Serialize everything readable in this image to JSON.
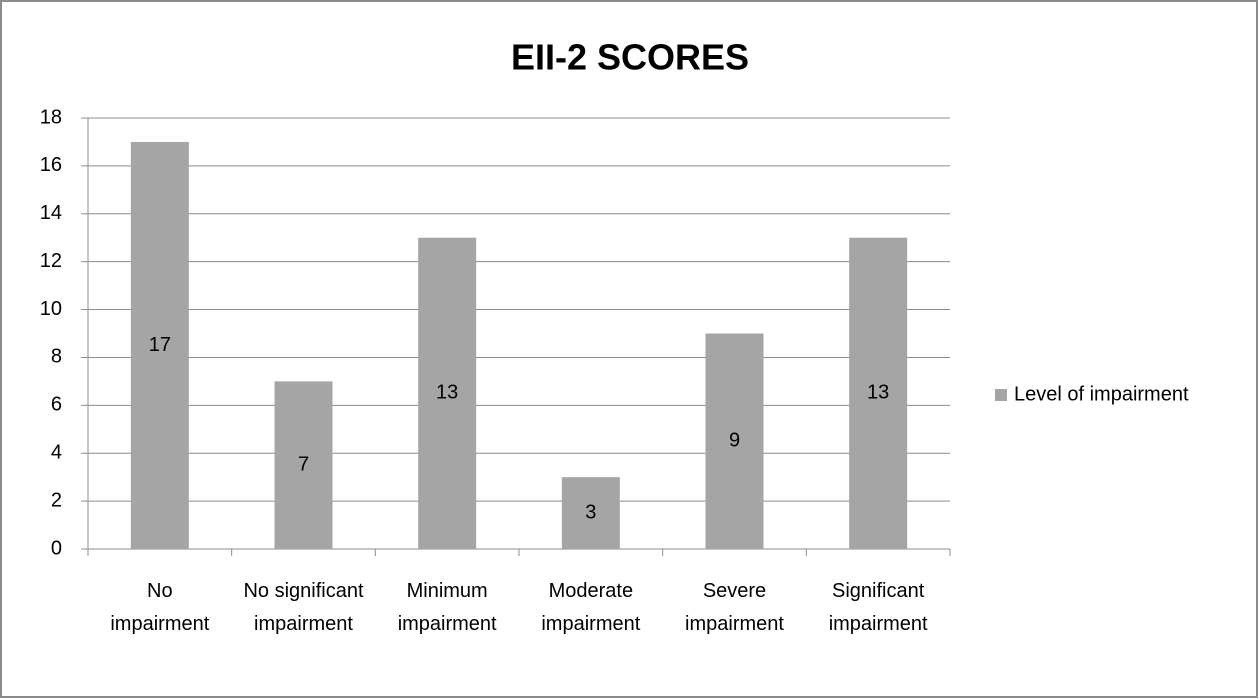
{
  "chart_data": {
    "type": "bar",
    "title": "EII-2 SCORES",
    "categories": [
      "No impairment",
      "No significant impairment",
      "Minimum impairment",
      "Moderate impairment",
      "Severe impairment",
      "Significant impairment"
    ],
    "series": [
      {
        "name": "Level of impairment",
        "color": "#a5a5a5",
        "values": [
          17,
          7,
          13,
          3,
          9,
          13
        ]
      }
    ],
    "ylim": [
      0,
      18
    ],
    "yticks": [
      0,
      2,
      4,
      6,
      8,
      10,
      12,
      14,
      16,
      18
    ],
    "grid": true,
    "legend": "right"
  }
}
